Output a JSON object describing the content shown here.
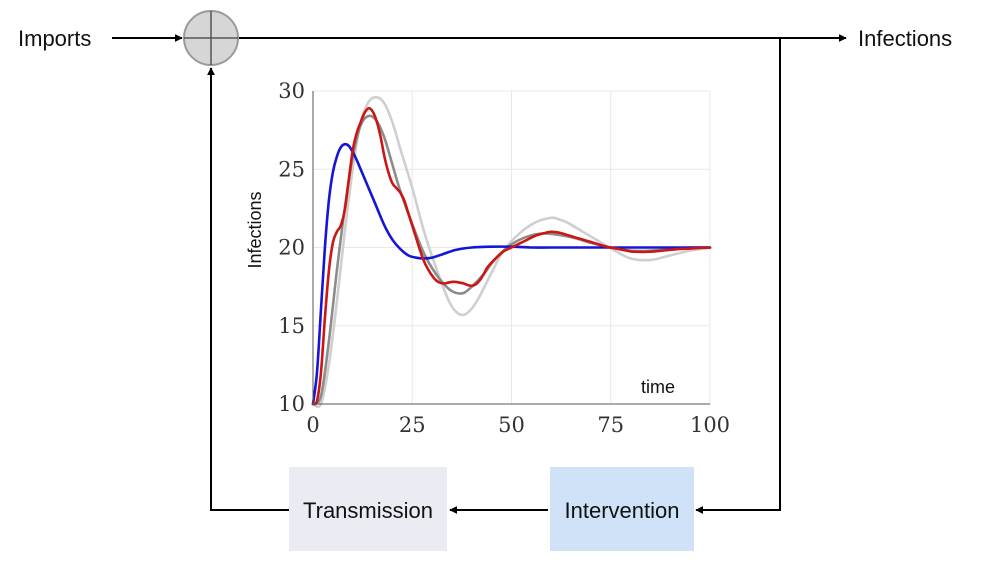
{
  "diagram": {
    "input_label": "Imports",
    "output_label": "Infections",
    "intervention_label": "Intervention",
    "transmission_label": "Transmission",
    "colors": {
      "intervention_fill": "#cfe2f8",
      "transmission_fill": "#ebebf3",
      "summing_fill": "#d6d6d6"
    },
    "icons": {
      "summing_junction": "summing-junction-icon"
    }
  },
  "chart_data": {
    "type": "line",
    "title": "",
    "xlabel": "time",
    "ylabel": "Infections",
    "xlim": [
      0,
      100
    ],
    "ylim": [
      10,
      30
    ],
    "xticks": [
      0,
      25,
      50,
      75,
      100
    ],
    "yticks": [
      10,
      15,
      20,
      25,
      30
    ],
    "grid": true,
    "series": [
      {
        "name": "light-gray",
        "color": "#cfcfcf",
        "x": [
          0,
          2,
          4,
          6,
          8,
          10,
          12,
          14,
          16,
          18,
          20,
          22,
          25,
          28,
          31,
          34,
          36,
          38,
          40,
          42,
          45,
          48,
          52,
          56,
          60,
          62,
          64,
          68,
          72,
          76,
          80,
          85,
          90,
          95,
          100
        ],
        "y": [
          10,
          10,
          12.5,
          16.5,
          21,
          25,
          28,
          29.3,
          29.6,
          29.2,
          28,
          26.3,
          23.8,
          21,
          18.7,
          16.7,
          15.9,
          15.7,
          16.1,
          16.9,
          18.4,
          19.8,
          20.9,
          21.6,
          21.9,
          21.8,
          21.6,
          21,
          20.4,
          19.8,
          19.3,
          19.2,
          19.5,
          19.8,
          20
        ]
      },
      {
        "name": "dark-gray",
        "color": "#8c8c8c",
        "x": [
          0,
          2,
          4,
          6,
          8,
          10,
          12,
          14,
          16,
          18,
          20,
          22,
          25,
          28,
          31,
          34,
          36,
          38,
          40,
          43,
          46,
          50,
          54,
          58,
          62,
          66,
          70,
          75,
          80,
          85,
          90,
          95,
          100
        ],
        "y": [
          10,
          10.5,
          14,
          18.5,
          22.5,
          25.8,
          27.8,
          28.4,
          28.1,
          27,
          25.3,
          23.6,
          21.5,
          19.6,
          18.3,
          17.4,
          17.1,
          17.1,
          17.5,
          18.3,
          19.3,
          20.2,
          20.7,
          20.9,
          20.8,
          20.6,
          20.3,
          20,
          19.8,
          19.8,
          19.9,
          20,
          20
        ]
      },
      {
        "name": "blue",
        "color": "#1515d8",
        "x": [
          0,
          1,
          2,
          3,
          4,
          5,
          6,
          7,
          8,
          9,
          10,
          11,
          12,
          14,
          16,
          18,
          20,
          22,
          24,
          26,
          28,
          30,
          33,
          36,
          40,
          45,
          50,
          55,
          60,
          70,
          80,
          90,
          100
        ],
        "y": [
          10,
          12,
          16,
          20,
          23,
          24.8,
          25.8,
          26.4,
          26.6,
          26.5,
          26.1,
          25.6,
          25,
          23.8,
          22.6,
          21.4,
          20.5,
          19.9,
          19.5,
          19.35,
          19.3,
          19.35,
          19.6,
          19.85,
          20,
          20.05,
          20.05,
          20,
          20,
          20,
          20,
          20,
          20
        ]
      },
      {
        "name": "red",
        "color": "#cc1515",
        "x": [
          0,
          1,
          2,
          3,
          4,
          5,
          6,
          7,
          8,
          9,
          10,
          11,
          12,
          13,
          14,
          15,
          16,
          17,
          18,
          19,
          20,
          21,
          22,
          23,
          24,
          25,
          26,
          27,
          28,
          29,
          30,
          31,
          32,
          33,
          34,
          35,
          36,
          37,
          38,
          39,
          40,
          41,
          42,
          43,
          44,
          46,
          48,
          50,
          52,
          54,
          56,
          58,
          60,
          62,
          64,
          66,
          68,
          70,
          72,
          74,
          76,
          78,
          80,
          82,
          84,
          86,
          88,
          90,
          92,
          94,
          96,
          98,
          100
        ],
        "y": [
          10,
          10.2,
          12,
          15.5,
          18.5,
          20.3,
          21,
          21.4,
          22.4,
          24.3,
          26.2,
          27.3,
          28,
          28.6,
          28.9,
          28.7,
          28.1,
          27.1,
          25.8,
          24.8,
          24.1,
          23.8,
          23.5,
          23,
          22.2,
          21.4,
          20.6,
          19.8,
          19.1,
          18.6,
          18.2,
          17.9,
          17.75,
          17.7,
          17.75,
          17.8,
          17.8,
          17.75,
          17.7,
          17.6,
          17.55,
          17.65,
          17.9,
          18.3,
          18.75,
          19.3,
          19.75,
          20,
          20.25,
          20.5,
          20.75,
          20.9,
          21,
          20.95,
          20.8,
          20.65,
          20.5,
          20.35,
          20.2,
          20.05,
          19.95,
          19.85,
          19.75,
          19.72,
          19.72,
          19.75,
          19.8,
          19.85,
          19.9,
          19.92,
          19.95,
          19.98,
          20
        ]
      }
    ]
  }
}
